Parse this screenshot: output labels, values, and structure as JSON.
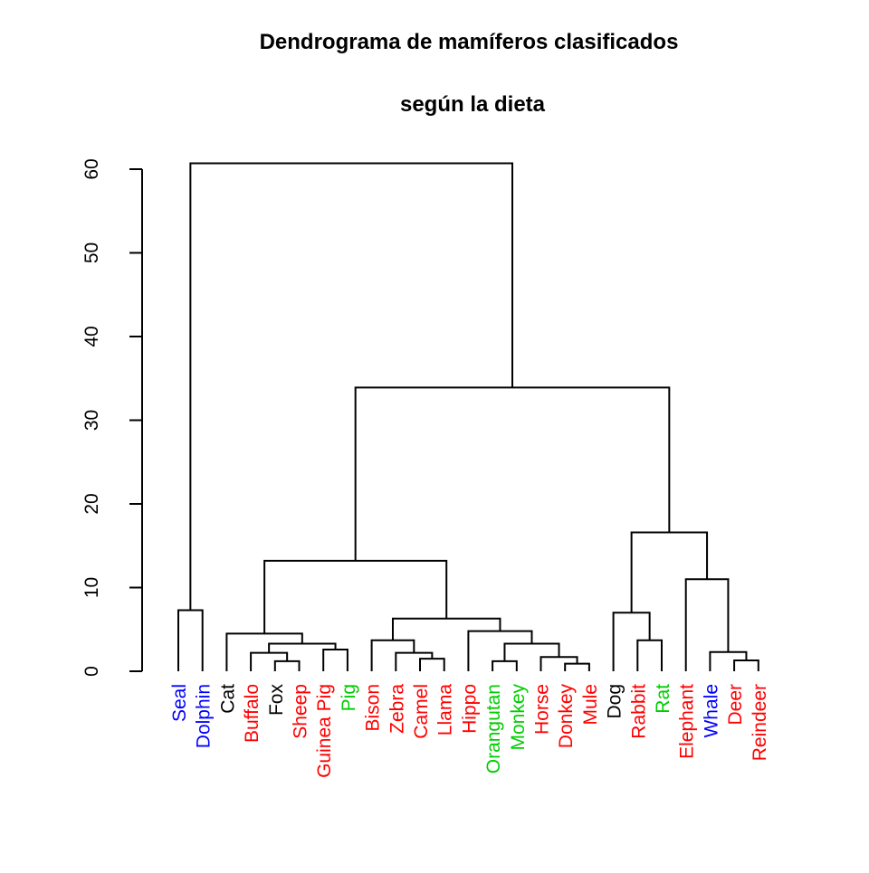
{
  "chart_data": {
    "type": "dendrogram",
    "title_lines": [
      "Dendrograma de mamíferos clasificados",
      "según la dieta"
    ],
    "ylabel": "",
    "xlabel": "",
    "ylim": [
      0,
      60
    ],
    "yticks": [
      0,
      10,
      20,
      30,
      40,
      50,
      60
    ],
    "colors": {
      "blue": "#0000ff",
      "red": "#ff0000",
      "green": "#00cd00",
      "black": "#000000"
    },
    "leaves": [
      {
        "label": "Seal",
        "color": "blue"
      },
      {
        "label": "Dolphin",
        "color": "blue"
      },
      {
        "label": "Cat",
        "color": "black"
      },
      {
        "label": "Buffalo",
        "color": "red"
      },
      {
        "label": "Fox",
        "color": "black"
      },
      {
        "label": "Sheep",
        "color": "red"
      },
      {
        "label": "Guinea Pig",
        "color": "red"
      },
      {
        "label": "Pig",
        "color": "green"
      },
      {
        "label": "Bison",
        "color": "red"
      },
      {
        "label": "Zebra",
        "color": "red"
      },
      {
        "label": "Camel",
        "color": "red"
      },
      {
        "label": "Llama",
        "color": "red"
      },
      {
        "label": "Hippo",
        "color": "red"
      },
      {
        "label": "Orangutan",
        "color": "green"
      },
      {
        "label": "Monkey",
        "color": "green"
      },
      {
        "label": "Horse",
        "color": "red"
      },
      {
        "label": "Donkey",
        "color": "red"
      },
      {
        "label": "Mule",
        "color": "red"
      },
      {
        "label": "Dog",
        "color": "black"
      },
      {
        "label": "Rabbit",
        "color": "red"
      },
      {
        "label": "Rat",
        "color": "green"
      },
      {
        "label": "Elephant",
        "color": "red"
      },
      {
        "label": "Whale",
        "color": "blue"
      },
      {
        "label": "Deer",
        "color": "red"
      },
      {
        "label": "Reindeer",
        "color": "red"
      }
    ],
    "merges": [
      {
        "left": "Seal",
        "right": "Dolphin",
        "height": 7.3
      },
      {
        "left": "Fox",
        "right": "Sheep",
        "height": 1.2
      },
      {
        "left": "Buffalo",
        "right": [
          "Fox",
          "Sheep"
        ],
        "height": 2.2
      },
      {
        "left": "Guinea Pig",
        "right": "Pig",
        "height": 2.6
      },
      {
        "left": [
          "Buffalo",
          "Fox",
          "Sheep"
        ],
        "right": [
          "Guinea Pig",
          "Pig"
        ],
        "height": 3.3
      },
      {
        "left": "Cat",
        "right": [
          "Buffalo",
          "Fox",
          "Sheep",
          "Guinea Pig",
          "Pig"
        ],
        "height": 4.5
      },
      {
        "left": "Camel",
        "right": "Llama",
        "height": 1.5
      },
      {
        "left": "Zebra",
        "right": [
          "Camel",
          "Llama"
        ],
        "height": 2.2
      },
      {
        "left": "Bison",
        "right": [
          "Zebra",
          "Camel",
          "Llama"
        ],
        "height": 3.7
      },
      {
        "left": "Orangutan",
        "right": "Monkey",
        "height": 1.2
      },
      {
        "left": "Donkey",
        "right": "Mule",
        "height": 0.9
      },
      {
        "left": "Horse",
        "right": [
          "Donkey",
          "Mule"
        ],
        "height": 1.7
      },
      {
        "left": [
          "Orangutan",
          "Monkey"
        ],
        "right": [
          "Horse",
          "Donkey",
          "Mule"
        ],
        "height": 3.3
      },
      {
        "left": "Hippo",
        "right": [
          "Orangutan",
          "Monkey",
          "Horse",
          "Donkey",
          "Mule"
        ],
        "height": 4.8
      },
      {
        "left": [
          "Bison",
          "Zebra",
          "Camel",
          "Llama"
        ],
        "right": [
          "Hippo",
          "Orangutan",
          "Monkey",
          "Horse",
          "Donkey",
          "Mule"
        ],
        "height": 6.3
      },
      {
        "left": [
          "Cat",
          "Buffalo",
          "Fox",
          "Sheep",
          "Guinea Pig",
          "Pig"
        ],
        "right": [
          "Bison",
          "Zebra",
          "Camel",
          "Llama",
          "Hippo",
          "Orangutan",
          "Monkey",
          "Horse",
          "Donkey",
          "Mule"
        ],
        "height": 13.2
      },
      {
        "left": "Rabbit",
        "right": "Rat",
        "height": 3.7
      },
      {
        "left": "Dog",
        "right": [
          "Rabbit",
          "Rat"
        ],
        "height": 7.0
      },
      {
        "left": "Deer",
        "right": "Reindeer",
        "height": 1.3
      },
      {
        "left": "Whale",
        "right": [
          "Deer",
          "Reindeer"
        ],
        "height": 2.3
      },
      {
        "left": "Elephant",
        "right": [
          "Whale",
          "Deer",
          "Reindeer"
        ],
        "height": 11.0
      },
      {
        "left": [
          "Dog",
          "Rabbit",
          "Rat"
        ],
        "right": [
          "Elephant",
          "Whale",
          "Deer",
          "Reindeer"
        ],
        "height": 16.6
      },
      {
        "left": [
          "Cat",
          "Buffalo",
          "Fox",
          "Sheep",
          "Guinea Pig",
          "Pig",
          "Bison",
          "Zebra",
          "Camel",
          "Llama",
          "Hippo",
          "Orangutan",
          "Monkey",
          "Horse",
          "Donkey",
          "Mule"
        ],
        "right": [
          "Dog",
          "Rabbit",
          "Rat",
          "Elephant",
          "Whale",
          "Deer",
          "Reindeer"
        ],
        "height": 33.9
      },
      {
        "left": [
          "Seal",
          "Dolphin"
        ],
        "right": [
          "Cat",
          "Buffalo",
          "Fox",
          "Sheep",
          "Guinea Pig",
          "Pig",
          "Bison",
          "Zebra",
          "Camel",
          "Llama",
          "Hippo",
          "Orangutan",
          "Monkey",
          "Horse",
          "Donkey",
          "Mule",
          "Dog",
          "Rabbit",
          "Rat",
          "Elephant",
          "Whale",
          "Deer",
          "Reindeer"
        ],
        "height": 60.7
      }
    ]
  }
}
